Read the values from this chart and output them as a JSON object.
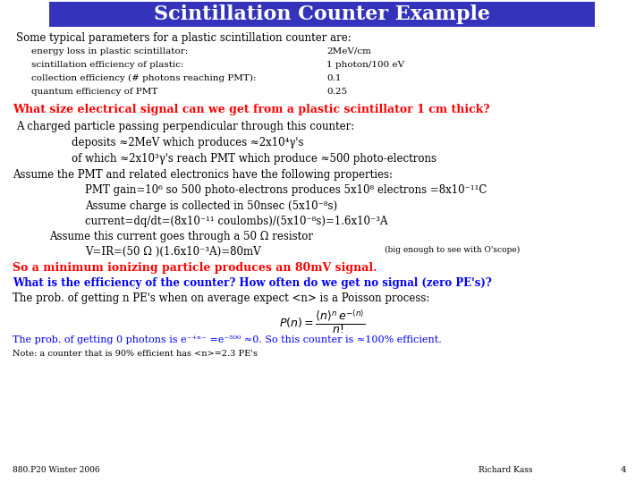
{
  "title": "Scintillation Counter Example",
  "title_bg": "#3333BB",
  "title_color": "#FFFFFF",
  "bg_color": "#FFFFFF",
  "footer_left": "880.P20 Winter 2006",
  "footer_right": "Richard Kass",
  "footer_page": "4"
}
